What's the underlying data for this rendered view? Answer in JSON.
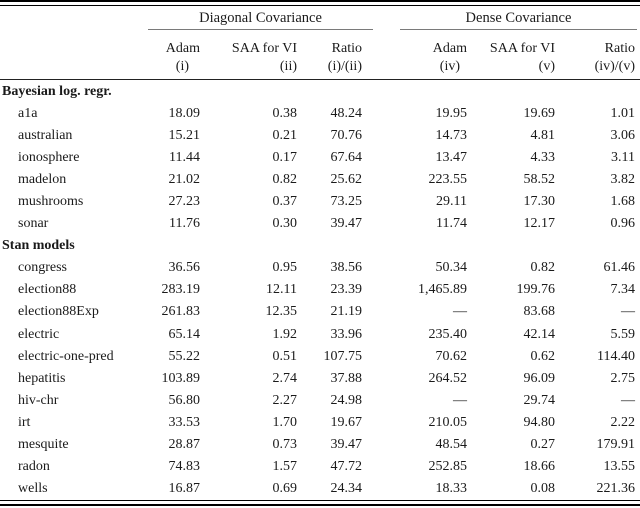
{
  "table": {
    "groups": [
      {
        "label": "Diagonal Covariance"
      },
      {
        "label": "Dense Covariance"
      }
    ],
    "columns": [
      {
        "top": "Adam",
        "sub": "(i)"
      },
      {
        "top": "SAA for VI",
        "sub": "(ii)"
      },
      {
        "top": "Ratio",
        "sub": "(i)/(ii)"
      },
      {
        "top": "Adam",
        "sub": "(iv)"
      },
      {
        "top": "SAA for VI",
        "sub": "(v)"
      },
      {
        "top": "Ratio",
        "sub": "(iv)/(v)"
      }
    ],
    "sections": [
      {
        "label": "Bayesian log. regr.",
        "rows": [
          {
            "label": "a1a",
            "values": [
              "18.09",
              "0.38",
              "48.24",
              "19.95",
              "19.69",
              "1.01"
            ]
          },
          {
            "label": "australian",
            "values": [
              "15.21",
              "0.21",
              "70.76",
              "14.73",
              "4.81",
              "3.06"
            ]
          },
          {
            "label": "ionosphere",
            "values": [
              "11.44",
              "0.17",
              "67.64",
              "13.47",
              "4.33",
              "3.11"
            ]
          },
          {
            "label": "madelon",
            "values": [
              "21.02",
              "0.82",
              "25.62",
              "223.55",
              "58.52",
              "3.82"
            ]
          },
          {
            "label": "mushrooms",
            "values": [
              "27.23",
              "0.37",
              "73.25",
              "29.11",
              "17.30",
              "1.68"
            ]
          },
          {
            "label": "sonar",
            "values": [
              "11.76",
              "0.30",
              "39.47",
              "11.74",
              "12.17",
              "0.96"
            ]
          }
        ]
      },
      {
        "label": "Stan models",
        "rows": [
          {
            "label": "congress",
            "values": [
              "36.56",
              "0.95",
              "38.56",
              "50.34",
              "0.82",
              "61.46"
            ]
          },
          {
            "label": "election88",
            "values": [
              "283.19",
              "12.11",
              "23.39",
              "1,465.89",
              "199.76",
              "7.34"
            ]
          },
          {
            "label": "election88Exp",
            "values": [
              "261.83",
              "12.35",
              "21.19",
              "—",
              "83.68",
              "—"
            ]
          },
          {
            "label": "electric",
            "values": [
              "65.14",
              "1.92",
              "33.96",
              "235.40",
              "42.14",
              "5.59"
            ]
          },
          {
            "label": "electric-one-pred",
            "values": [
              "55.22",
              "0.51",
              "107.75",
              "70.62",
              "0.62",
              "114.40"
            ]
          },
          {
            "label": "hepatitis",
            "values": [
              "103.89",
              "2.74",
              "37.88",
              "264.52",
              "96.09",
              "2.75"
            ]
          },
          {
            "label": "hiv-chr",
            "values": [
              "56.80",
              "2.27",
              "24.98",
              "—",
              "29.74",
              "—"
            ]
          },
          {
            "label": "irt",
            "values": [
              "33.53",
              "1.70",
              "19.67",
              "210.05",
              "94.80",
              "2.22"
            ]
          },
          {
            "label": "mesquite",
            "values": [
              "28.87",
              "0.73",
              "39.47",
              "48.54",
              "0.27",
              "179.91"
            ]
          },
          {
            "label": "radon",
            "values": [
              "74.83",
              "1.57",
              "47.72",
              "252.85",
              "18.66",
              "13.55"
            ]
          },
          {
            "label": "wells",
            "values": [
              "16.87",
              "0.69",
              "24.34",
              "18.33",
              "0.08",
              "221.36"
            ]
          }
        ]
      }
    ]
  },
  "colors": {
    "text": "#1a1a1a",
    "main_rule": "#000000",
    "cmidrule": "#7a7a7a",
    "background": "#ffffff"
  }
}
